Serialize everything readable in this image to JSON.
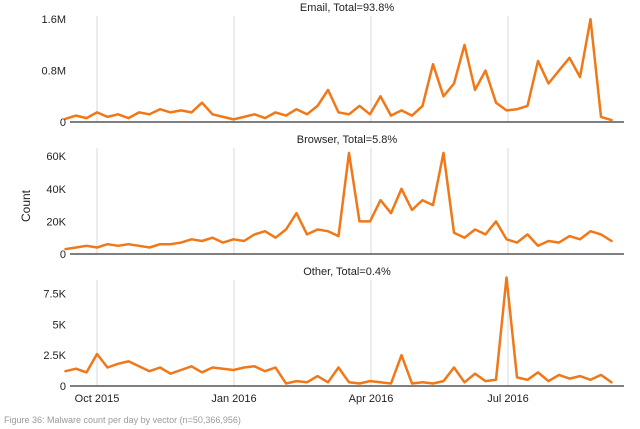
{
  "figure": {
    "caption": "Figure 36: Malware count per day by vector (n=50,366,956)"
  },
  "chart_data": {
    "type": "line",
    "shared_x": true,
    "ylabel": "Count",
    "x_ticks": [
      "Oct 2015",
      "Jan 2016",
      "Apr 2016",
      "Jul 2016"
    ],
    "x_range": [
      "2015-09-10",
      "2016-09-10"
    ],
    "line_color": "#f07818",
    "grid": "vertical",
    "panels": [
      {
        "title": "Email, Total=93.8%",
        "y_ticks": [
          "0",
          "0.8M",
          "1.6M"
        ],
        "y_tick_values": [
          0,
          800000,
          1600000
        ],
        "ylim": [
          0,
          1650000
        ],
        "x": [
          "2015-09-10",
          "2015-09-17",
          "2015-09-24",
          "2015-10-01",
          "2015-10-08",
          "2015-10-15",
          "2015-10-22",
          "2015-10-29",
          "2015-11-05",
          "2015-11-12",
          "2015-11-19",
          "2015-11-26",
          "2015-12-03",
          "2015-12-10",
          "2015-12-17",
          "2015-12-24",
          "2015-12-31",
          "2016-01-07",
          "2016-01-14",
          "2016-01-21",
          "2016-01-28",
          "2016-02-04",
          "2016-02-11",
          "2016-02-18",
          "2016-02-25",
          "2016-03-03",
          "2016-03-10",
          "2016-03-17",
          "2016-03-24",
          "2016-03-31",
          "2016-04-07",
          "2016-04-14",
          "2016-04-21",
          "2016-04-28",
          "2016-05-05",
          "2016-05-12",
          "2016-05-19",
          "2016-05-26",
          "2016-06-02",
          "2016-06-09",
          "2016-06-16",
          "2016-06-23",
          "2016-06-30",
          "2016-07-07",
          "2016-07-14",
          "2016-07-21",
          "2016-07-28",
          "2016-08-04",
          "2016-08-11",
          "2016-08-18",
          "2016-08-25",
          "2016-09-01",
          "2016-09-08"
        ],
        "y": [
          50000,
          100000,
          60000,
          150000,
          80000,
          120000,
          60000,
          150000,
          120000,
          200000,
          150000,
          180000,
          150000,
          300000,
          120000,
          80000,
          40000,
          80000,
          120000,
          60000,
          150000,
          100000,
          200000,
          120000,
          250000,
          500000,
          150000,
          120000,
          250000,
          120000,
          400000,
          100000,
          180000,
          100000,
          250000,
          900000,
          400000,
          600000,
          1200000,
          500000,
          800000,
          300000,
          180000,
          200000,
          250000,
          950000,
          600000,
          800000,
          1000000,
          700000,
          1600000,
          80000,
          30000
        ]
      },
      {
        "title": "Browser, Total=5.8%",
        "y_ticks": [
          "0",
          "20K",
          "40K",
          "60K"
        ],
        "y_tick_values": [
          0,
          20000,
          40000,
          60000
        ],
        "ylim": [
          0,
          65000
        ],
        "x": [
          "2015-09-10",
          "2015-09-17",
          "2015-09-24",
          "2015-10-01",
          "2015-10-08",
          "2015-10-15",
          "2015-10-22",
          "2015-10-29",
          "2015-11-05",
          "2015-11-12",
          "2015-11-19",
          "2015-11-26",
          "2015-12-03",
          "2015-12-10",
          "2015-12-17",
          "2015-12-24",
          "2015-12-31",
          "2016-01-07",
          "2016-01-14",
          "2016-01-21",
          "2016-01-28",
          "2016-02-04",
          "2016-02-11",
          "2016-02-18",
          "2016-02-25",
          "2016-03-03",
          "2016-03-10",
          "2016-03-17",
          "2016-03-24",
          "2016-03-31",
          "2016-04-07",
          "2016-04-14",
          "2016-04-21",
          "2016-04-28",
          "2016-05-05",
          "2016-05-12",
          "2016-05-19",
          "2016-05-26",
          "2016-06-02",
          "2016-06-09",
          "2016-06-16",
          "2016-06-23",
          "2016-06-30",
          "2016-07-07",
          "2016-07-14",
          "2016-07-21",
          "2016-07-28",
          "2016-08-04",
          "2016-08-11",
          "2016-08-18",
          "2016-08-25",
          "2016-09-01",
          "2016-09-08"
        ],
        "y": [
          3000,
          4000,
          5000,
          4000,
          6000,
          5000,
          6000,
          5000,
          4000,
          6000,
          6000,
          7000,
          9000,
          8000,
          10000,
          7000,
          9000,
          8000,
          12000,
          14000,
          10000,
          15000,
          25000,
          12000,
          15000,
          14000,
          11000,
          62000,
          20000,
          20000,
          33000,
          25000,
          40000,
          27000,
          33000,
          30000,
          62000,
          13000,
          10000,
          15000,
          12000,
          20000,
          9000,
          7000,
          12000,
          5000,
          8000,
          7000,
          11000,
          9000,
          14000,
          12000,
          8000
        ]
      },
      {
        "title": "Other, Total=0.4%",
        "y_ticks": [
          "0",
          "2.5K",
          "5K",
          "7.5K"
        ],
        "y_tick_values": [
          0,
          2500,
          5000,
          7500
        ],
        "ylim": [
          0,
          8600
        ],
        "x": [
          "2015-09-10",
          "2015-09-17",
          "2015-09-24",
          "2015-10-01",
          "2015-10-08",
          "2015-10-15",
          "2015-10-22",
          "2015-10-29",
          "2015-11-05",
          "2015-11-12",
          "2015-11-19",
          "2015-11-26",
          "2015-12-03",
          "2015-12-10",
          "2015-12-17",
          "2015-12-24",
          "2015-12-31",
          "2016-01-07",
          "2016-01-14",
          "2016-01-21",
          "2016-01-28",
          "2016-02-04",
          "2016-02-11",
          "2016-02-18",
          "2016-02-25",
          "2016-03-03",
          "2016-03-10",
          "2016-03-17",
          "2016-03-24",
          "2016-03-31",
          "2016-04-07",
          "2016-04-14",
          "2016-04-21",
          "2016-04-28",
          "2016-05-05",
          "2016-05-12",
          "2016-05-19",
          "2016-05-26",
          "2016-06-02",
          "2016-06-09",
          "2016-06-16",
          "2016-06-23",
          "2016-06-30",
          "2016-07-07",
          "2016-07-14",
          "2016-07-21",
          "2016-07-28",
          "2016-08-04",
          "2016-08-11",
          "2016-08-18",
          "2016-08-25",
          "2016-09-01",
          "2016-09-08"
        ],
        "y": [
          1200,
          1400,
          1100,
          2600,
          1500,
          1800,
          2000,
          1600,
          1200,
          1500,
          1000,
          1300,
          1600,
          1100,
          1500,
          1400,
          1300,
          1500,
          1600,
          1200,
          1500,
          200,
          400,
          300,
          800,
          300,
          1500,
          300,
          200,
          400,
          300,
          200,
          2500,
          200,
          300,
          200,
          400,
          1500,
          300,
          1000,
          400,
          500,
          8800,
          700,
          500,
          1100,
          400,
          900,
          600,
          800,
          500,
          900,
          300
        ]
      }
    ]
  }
}
